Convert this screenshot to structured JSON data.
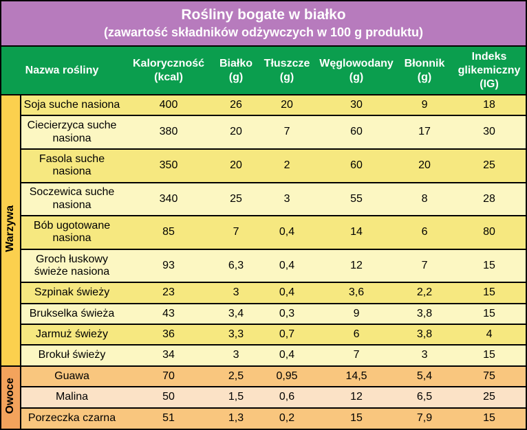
{
  "chart_data": {
    "type": "table",
    "title": "Rośliny bogate w białko",
    "subtitle": "(zawartość składników odżywczych w 100 g produktu)",
    "columns": [
      {
        "label": "Nazwa rośliny",
        "unit": ""
      },
      {
        "label": "Kaloryczność",
        "unit": "(kcal)"
      },
      {
        "label": "Białko",
        "unit": "(g)"
      },
      {
        "label": "Tłuszcze",
        "unit": "(g)"
      },
      {
        "label": "Węglowodany",
        "unit": "(g)"
      },
      {
        "label": "Błonnik",
        "unit": "(g)"
      },
      {
        "label": "Indeks glikemiczny",
        "unit": "(IG)"
      }
    ],
    "sections": [
      {
        "label": "Warzywa",
        "rows": [
          {
            "name": "Soja suche nasiona",
            "values": [
              "400",
              "26",
              "20",
              "30",
              "9",
              "18"
            ]
          },
          {
            "name": "Ciecierzyca suche nasiona",
            "values": [
              "380",
              "20",
              "7",
              "60",
              "17",
              "30"
            ]
          },
          {
            "name": "Fasola suche nasiona",
            "values": [
              "350",
              "20",
              "2",
              "60",
              "20",
              "25"
            ]
          },
          {
            "name": "Soczewica suche nasiona",
            "values": [
              "340",
              "25",
              "3",
              "55",
              "8",
              "28"
            ]
          },
          {
            "name": "Bób ugotowane nasiona",
            "values": [
              "85",
              "7",
              "0,4",
              "14",
              "6",
              "80"
            ]
          },
          {
            "name": "Groch łuskowy świeże nasiona",
            "values": [
              "93",
              "6,3",
              "0,4",
              "12",
              "7",
              "15"
            ]
          },
          {
            "name": "Szpinak świeży",
            "values": [
              "23",
              "3",
              "0,4",
              "3,6",
              "2,2",
              "15"
            ]
          },
          {
            "name": "Brukselka świeża",
            "values": [
              "43",
              "3,4",
              "0,3",
              "9",
              "3,8",
              "15"
            ]
          },
          {
            "name": "Jarmuż świeży",
            "values": [
              "36",
              "3,3",
              "0,7",
              "6",
              "3,8",
              "4"
            ]
          },
          {
            "name": "Brokuł świeży",
            "values": [
              "34",
              "3",
              "0,4",
              "7",
              "3",
              "15"
            ]
          }
        ]
      },
      {
        "label": "Owoce",
        "rows": [
          {
            "name": "Guawa",
            "values": [
              "70",
              "2,5",
              "0,95",
              "14,5",
              "5,4",
              "75"
            ]
          },
          {
            "name": "Malina",
            "values": [
              "50",
              "1,5",
              "0,6",
              "12",
              "6,5",
              "25"
            ]
          },
          {
            "name": "Porzeczka czarna",
            "values": [
              "51",
              "1,3",
              "0,2",
              "15",
              "7,9",
              "15"
            ]
          }
        ]
      }
    ]
  },
  "colors": {
    "banner_bg": "#b77bbd",
    "header_bg": "#0b9e4e",
    "header_text": "#ffffff",
    "body_text": "#000000",
    "border": "#000000",
    "veg_strip": "#fbd04e",
    "fruit_strip": "#f3a35c",
    "veg_row_a": "#f6e880",
    "veg_row_b": "#fcf7c2",
    "fruit_row_a": "#f9c67e",
    "fruit_row_b": "#fbe2c6"
  }
}
